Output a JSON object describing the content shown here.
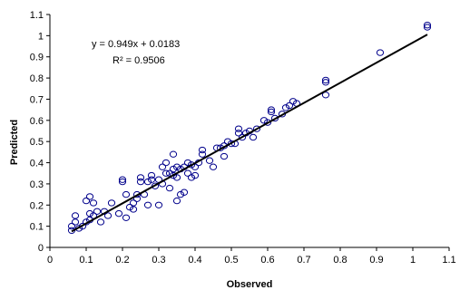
{
  "chart_data": {
    "type": "scatter",
    "xlabel": "Observed",
    "ylabel": "Predicted",
    "xlim": [
      0,
      1.1
    ],
    "ylim": [
      0,
      1.1
    ],
    "x_ticks": [
      "0",
      "0.1",
      "0.2",
      "0.3",
      "0.4",
      "0.5",
      "0.6",
      "0.7",
      "0.8",
      "0.9",
      "1",
      "1.1"
    ],
    "y_ticks": [
      "0",
      "0.1",
      "0.2",
      "0.3",
      "0.4",
      "0.5",
      "0.6",
      "0.7",
      "0.8",
      "0.9",
      "1",
      "1.1"
    ],
    "grid": false,
    "marker_color": "#00008B",
    "line_color": "#000000",
    "annotations": {
      "equation": "y = 0.949x + 0.0183",
      "r_squared": "R² = 0.9506"
    },
    "trendline": {
      "slope": 0.949,
      "intercept": 0.0183,
      "x_range": [
        0.06,
        1.04
      ]
    },
    "points": [
      [
        0.06,
        0.1
      ],
      [
        0.06,
        0.08
      ],
      [
        0.07,
        0.15
      ],
      [
        0.07,
        0.12
      ],
      [
        0.08,
        0.09
      ],
      [
        0.09,
        0.1
      ],
      [
        0.1,
        0.12
      ],
      [
        0.1,
        0.22
      ],
      [
        0.11,
        0.24
      ],
      [
        0.11,
        0.16
      ],
      [
        0.11,
        0.13
      ],
      [
        0.12,
        0.21
      ],
      [
        0.12,
        0.15
      ],
      [
        0.13,
        0.17
      ],
      [
        0.14,
        0.12
      ],
      [
        0.15,
        0.17
      ],
      [
        0.16,
        0.15
      ],
      [
        0.17,
        0.21
      ],
      [
        0.19,
        0.16
      ],
      [
        0.2,
        0.32
      ],
      [
        0.2,
        0.31
      ],
      [
        0.21,
        0.25
      ],
      [
        0.21,
        0.14
      ],
      [
        0.22,
        0.19
      ],
      [
        0.23,
        0.18
      ],
      [
        0.23,
        0.21
      ],
      [
        0.24,
        0.25
      ],
      [
        0.24,
        0.23
      ],
      [
        0.25,
        0.33
      ],
      [
        0.25,
        0.31
      ],
      [
        0.26,
        0.25
      ],
      [
        0.27,
        0.31
      ],
      [
        0.27,
        0.2
      ],
      [
        0.28,
        0.34
      ],
      [
        0.28,
        0.32
      ],
      [
        0.29,
        0.29
      ],
      [
        0.3,
        0.32
      ],
      [
        0.3,
        0.2
      ],
      [
        0.31,
        0.38
      ],
      [
        0.31,
        0.3
      ],
      [
        0.32,
        0.35
      ],
      [
        0.32,
        0.4
      ],
      [
        0.33,
        0.35
      ],
      [
        0.33,
        0.28
      ],
      [
        0.34,
        0.37
      ],
      [
        0.34,
        0.34
      ],
      [
        0.34,
        0.44
      ],
      [
        0.35,
        0.38
      ],
      [
        0.35,
        0.33
      ],
      [
        0.35,
        0.22
      ],
      [
        0.36,
        0.37
      ],
      [
        0.36,
        0.25
      ],
      [
        0.37,
        0.26
      ],
      [
        0.37,
        0.38
      ],
      [
        0.38,
        0.35
      ],
      [
        0.38,
        0.4
      ],
      [
        0.39,
        0.39
      ],
      [
        0.39,
        0.33
      ],
      [
        0.4,
        0.38
      ],
      [
        0.4,
        0.34
      ],
      [
        0.41,
        0.4
      ],
      [
        0.42,
        0.44
      ],
      [
        0.42,
        0.46
      ],
      [
        0.44,
        0.41
      ],
      [
        0.45,
        0.38
      ],
      [
        0.46,
        0.47
      ],
      [
        0.47,
        0.47
      ],
      [
        0.48,
        0.48
      ],
      [
        0.48,
        0.43
      ],
      [
        0.49,
        0.5
      ],
      [
        0.5,
        0.49
      ],
      [
        0.51,
        0.49
      ],
      [
        0.52,
        0.54
      ],
      [
        0.52,
        0.56
      ],
      [
        0.53,
        0.52
      ],
      [
        0.54,
        0.54
      ],
      [
        0.55,
        0.55
      ],
      [
        0.56,
        0.52
      ],
      [
        0.57,
        0.56
      ],
      [
        0.59,
        0.6
      ],
      [
        0.6,
        0.59
      ],
      [
        0.61,
        0.64
      ],
      [
        0.61,
        0.65
      ],
      [
        0.62,
        0.61
      ],
      [
        0.64,
        0.63
      ],
      [
        0.65,
        0.66
      ],
      [
        0.66,
        0.67
      ],
      [
        0.67,
        0.69
      ],
      [
        0.68,
        0.68
      ],
      [
        0.76,
        0.72
      ],
      [
        0.76,
        0.78
      ],
      [
        0.76,
        0.79
      ],
      [
        0.91,
        0.92
      ],
      [
        1.04,
        1.05
      ],
      [
        1.04,
        1.04
      ]
    ]
  }
}
